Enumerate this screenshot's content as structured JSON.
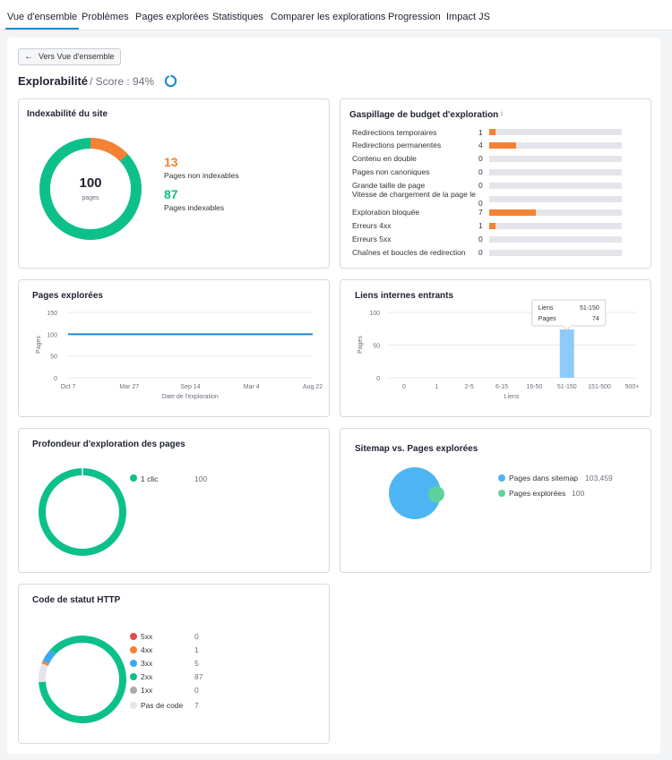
{
  "tabs": [
    "Vue d'ensemble",
    "Problèmes",
    "Pages explorées",
    "Statistiques",
    "Comparer les explorations",
    "Progression",
    "Impact JS"
  ],
  "header": {
    "back_label": "Vers Vue d'ensemble",
    "title": "Explorabilité",
    "score_label": "/ Score : 94%",
    "score_value": 0.94
  },
  "indexability": {
    "title": "Indexabilité du site",
    "total": "100",
    "total_unit": "pages",
    "non_indexable_count": "13",
    "non_indexable_label": "Pages non indexables",
    "indexable_count": "87",
    "indexable_label": "Pages indexables",
    "colors": {
      "indexable": "#0dc08a",
      "non_indexable": "#f58232"
    }
  },
  "budget": {
    "title": "Gaspillage de budget d'exploration",
    "info_icon": "info-icon",
    "rows": [
      {
        "label": "Redirections temporaires",
        "value": "1"
      },
      {
        "label": "Redirections permanentes",
        "value": "4"
      },
      {
        "label": "Contenu en double",
        "value": "0"
      },
      {
        "label": "Pages non canoniques",
        "value": "0"
      },
      {
        "label": "Grande taille de page",
        "value": "0"
      },
      {
        "label": "Vitesse de chargement de la page le",
        "value": "0"
      },
      {
        "label": "Exploration bloquée",
        "value": "7"
      },
      {
        "label": "Erreurs 4xx",
        "value": "1"
      },
      {
        "label": "Erreurs 5xx",
        "value": "0"
      },
      {
        "label": "Chaînes et boucles de redirection",
        "value": "0"
      }
    ],
    "max": 20
  },
  "crawled": {
    "title": "Pages explorées",
    "chart_data": {
      "type": "line",
      "x": [
        "Oct 7",
        "Mar 27",
        "Sep 14",
        "Mar 4",
        "Aug 22"
      ],
      "values": [
        100,
        100,
        100,
        100,
        100
      ],
      "yticks": [
        "150",
        "100",
        "50",
        "0"
      ],
      "ylim": [
        0,
        150
      ],
      "xlabel": "Date de l'exploration",
      "ylabel": "Pages",
      "color": "#1a8bd1"
    }
  },
  "links": {
    "title": "Liens internes entrants",
    "chart_data": {
      "type": "bar",
      "categories": [
        "0",
        "1",
        "2-5",
        "6-15",
        "16-50",
        "51-150",
        "151-500",
        "500+"
      ],
      "values": [
        0,
        0,
        0,
        0,
        0,
        74,
        0,
        0
      ],
      "yticks": [
        "100",
        "50",
        "0"
      ],
      "ylim": [
        0,
        100
      ],
      "xlabel": "Liens",
      "ylabel": "Pages",
      "color": "#8fcbf9"
    },
    "tooltip": {
      "k1": "Liens",
      "v1": "51-150",
      "k2": "Pages",
      "v2": "74"
    }
  },
  "depth": {
    "title": "Profondeur d'exploration des pages",
    "legend": [
      {
        "label": "1 clic",
        "value": "100",
        "color": "#0dc08a"
      }
    ]
  },
  "sitemap": {
    "title": "Sitemap vs. Pages explorées",
    "legend": [
      {
        "label": "Pages dans sitemap",
        "value": "103,459",
        "color": "#4db6f2"
      },
      {
        "label": "Pages explorées",
        "value": "100",
        "color": "#5ed29b"
      }
    ]
  },
  "http": {
    "title": "Code de statut HTTP",
    "legend": [
      {
        "label": "5xx",
        "value": "0",
        "color": "#e24b4b"
      },
      {
        "label": "4xx",
        "value": "1",
        "color": "#f58232"
      },
      {
        "label": "3xx",
        "value": "5",
        "color": "#3aa9ef"
      },
      {
        "label": "2xx",
        "value": "87",
        "color": "#0dc08a"
      },
      {
        "label": "1xx",
        "value": "0",
        "color": "#a8aab0"
      },
      {
        "label": "Pas de code",
        "value": "7",
        "color": "#e3e5ea"
      }
    ]
  }
}
